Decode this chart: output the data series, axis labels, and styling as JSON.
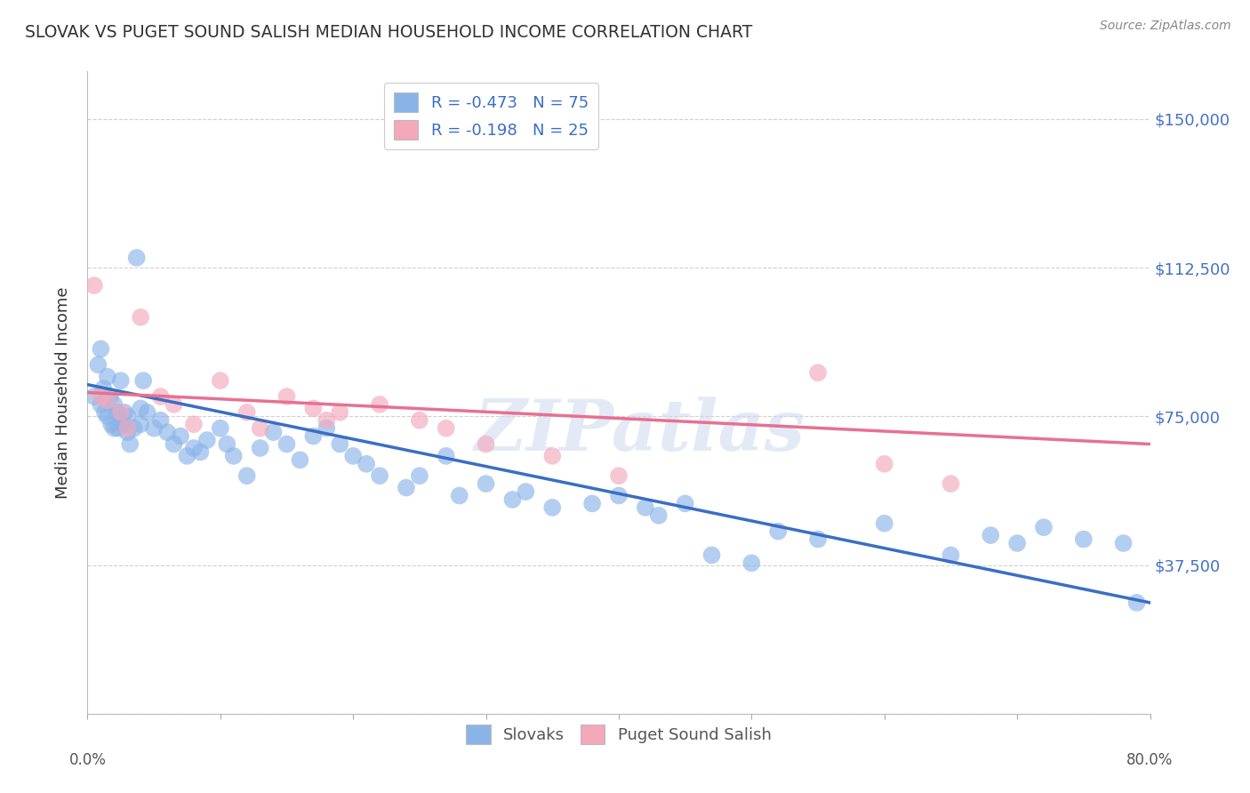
{
  "title": "SLOVAK VS PUGET SOUND SALISH MEDIAN HOUSEHOLD INCOME CORRELATION CHART",
  "source": "Source: ZipAtlas.com",
  "ylabel": "Median Household Income",
  "yticks": [
    0,
    37500,
    75000,
    112500,
    150000
  ],
  "ytick_labels": [
    "",
    "$37,500",
    "$75,000",
    "$112,500",
    "$150,000"
  ],
  "xlim": [
    0.0,
    80.0
  ],
  "ylim": [
    0,
    162000
  ],
  "blue_color": "#8AB4E8",
  "pink_color": "#F4A8BC",
  "blue_line_color": "#3A6EC4",
  "pink_line_color": "#E87090",
  "legend_r1": "-0.473",
  "legend_n1": "75",
  "legend_r2": "-0.198",
  "legend_n2": "25",
  "watermark": "ZIPatlas",
  "title_color": "#333333",
  "tick_label_color_right": "#4472C4",
  "grid_color": "#d0d0d0",
  "slovaks_x": [
    0.5,
    0.8,
    1.0,
    1.0,
    1.2,
    1.3,
    1.5,
    1.5,
    1.7,
    1.8,
    2.0,
    2.0,
    2.2,
    2.3,
    2.5,
    2.5,
    2.7,
    2.8,
    3.0,
    3.0,
    3.2,
    3.5,
    3.7,
    4.0,
    4.0,
    4.2,
    4.5,
    5.0,
    5.5,
    6.0,
    6.5,
    7.0,
    7.5,
    8.0,
    8.5,
    9.0,
    10.0,
    10.5,
    11.0,
    12.0,
    13.0,
    14.0,
    15.0,
    16.0,
    17.0,
    18.0,
    19.0,
    20.0,
    21.0,
    22.0,
    24.0,
    25.0,
    27.0,
    28.0,
    30.0,
    32.0,
    33.0,
    35.0,
    38.0,
    40.0,
    42.0,
    43.0,
    45.0,
    47.0,
    50.0,
    52.0,
    55.0,
    60.0,
    65.0,
    68.0,
    70.0,
    72.0,
    75.0,
    78.0,
    79.0
  ],
  "slovaks_y": [
    80000,
    88000,
    92000,
    78000,
    82000,
    76000,
    85000,
    75000,
    80000,
    73000,
    78000,
    72000,
    76000,
    72000,
    84000,
    74000,
    73000,
    76000,
    71000,
    75000,
    68000,
    72000,
    115000,
    77000,
    73000,
    84000,
    76000,
    72000,
    74000,
    71000,
    68000,
    70000,
    65000,
    67000,
    66000,
    69000,
    72000,
    68000,
    65000,
    60000,
    67000,
    71000,
    68000,
    64000,
    70000,
    72000,
    68000,
    65000,
    63000,
    60000,
    57000,
    60000,
    65000,
    55000,
    58000,
    54000,
    56000,
    52000,
    53000,
    55000,
    52000,
    50000,
    53000,
    40000,
    38000,
    46000,
    44000,
    48000,
    40000,
    45000,
    43000,
    47000,
    44000,
    43000,
    28000
  ],
  "salish_x": [
    0.5,
    1.0,
    1.5,
    2.5,
    3.0,
    4.0,
    5.5,
    6.5,
    8.0,
    10.0,
    12.0,
    13.0,
    15.0,
    17.0,
    18.0,
    19.0,
    22.0,
    25.0,
    27.0,
    30.0,
    35.0,
    40.0,
    55.0,
    60.0,
    65.0
  ],
  "salish_y": [
    108000,
    80000,
    79000,
    76000,
    72000,
    100000,
    80000,
    78000,
    73000,
    84000,
    76000,
    72000,
    80000,
    77000,
    74000,
    76000,
    78000,
    74000,
    72000,
    68000,
    65000,
    60000,
    86000,
    63000,
    58000
  ],
  "blue_trendline_x0": 0.0,
  "blue_trendline_y0": 83000,
  "blue_trendline_x1": 80.0,
  "blue_trendline_y1": 28000,
  "pink_trendline_x0": 0.0,
  "pink_trendline_y0": 81000,
  "pink_trendline_x1": 80.0,
  "pink_trendline_y1": 68000
}
